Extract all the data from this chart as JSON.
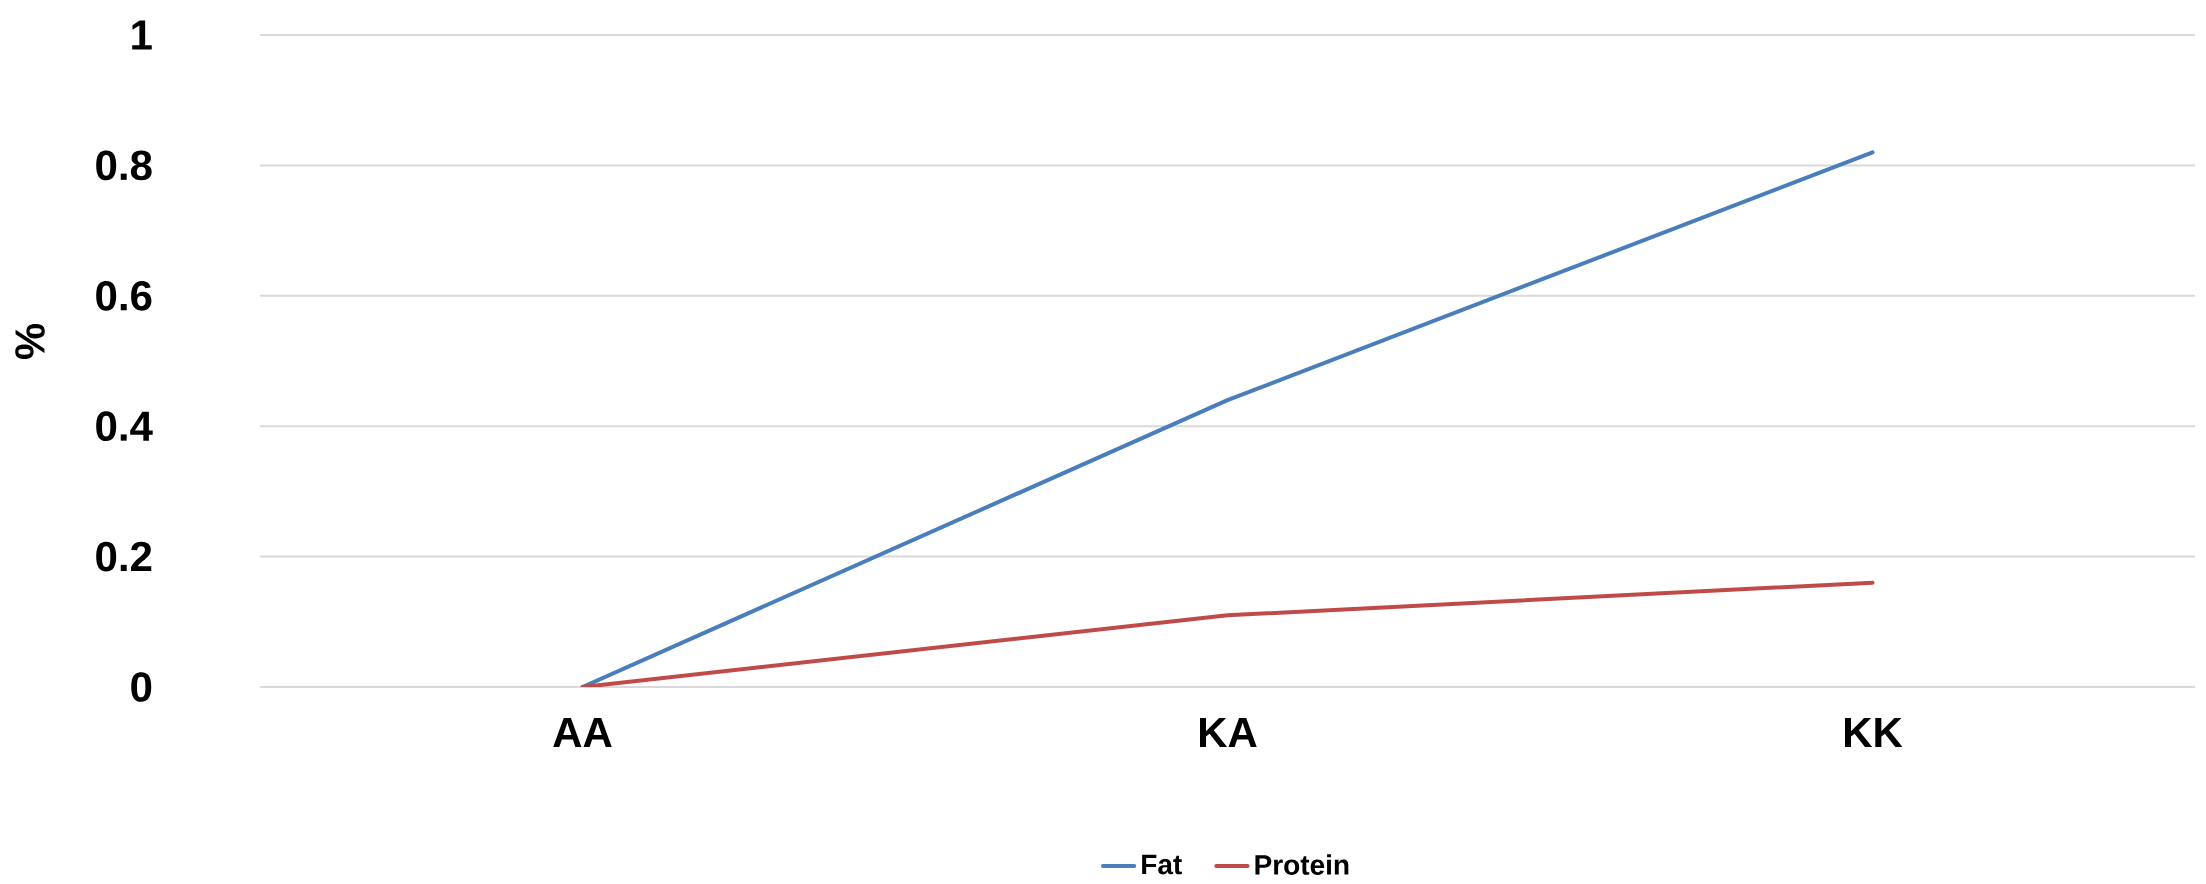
{
  "chart_data": {
    "type": "line",
    "categories": [
      "AA",
      "KA",
      "KK"
    ],
    "series": [
      {
        "name": "Fat",
        "color": "#4a7ebb",
        "values": [
          0,
          0.44,
          0.82
        ]
      },
      {
        "name": "Protein",
        "color": "#be4b48",
        "values": [
          0,
          0.11,
          0.16
        ]
      }
    ],
    "ylabel": "%",
    "ylim": [
      0,
      1
    ],
    "yticks": [
      0,
      0.2,
      0.4,
      0.6,
      0.8,
      1
    ],
    "grid": "y",
    "legend": "bottom",
    "marker": "none",
    "line_style": "solid"
  }
}
